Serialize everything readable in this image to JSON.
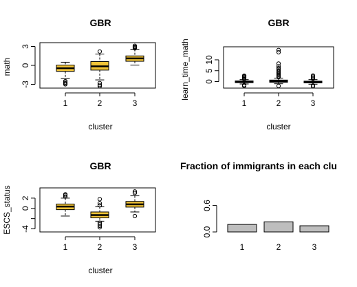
{
  "colors": {
    "box_fill": "#F2C438",
    "bar_fill": "#BEBEBE",
    "ink": "#000000"
  },
  "chart_data": [
    {
      "type": "box",
      "title": "GBR",
      "xlabel": "cluster",
      "ylabel": "math",
      "categories": [
        "1",
        "2",
        "3"
      ],
      "ylim": [
        -3.6,
        3.6
      ],
      "yticks": [
        -3,
        0,
        3
      ],
      "yticklabels": [
        "-3",
        "0",
        "3"
      ],
      "boxes": [
        {
          "name": "1",
          "low": -2.1,
          "q1": -0.95,
          "median": -0.45,
          "q3": 0.05,
          "high": 0.5,
          "outliers": [
            -2.5,
            -2.7,
            -2.85,
            -3.0
          ]
        },
        {
          "name": "2",
          "low": -2.3,
          "q1": -0.75,
          "median": -0.15,
          "q3": 0.6,
          "high": 1.8,
          "outliers": [
            2.2,
            -2.8,
            -3.1,
            -3.3
          ]
        },
        {
          "name": "3",
          "low": 0.05,
          "q1": 0.65,
          "median": 1.1,
          "q3": 1.5,
          "high": 2.55,
          "outliers": [
            2.7,
            2.85,
            2.95,
            3.1
          ]
        }
      ]
    },
    {
      "type": "box",
      "title": "GBR",
      "xlabel": "cluster",
      "ylabel": "learn_time_math",
      "categories": [
        "1",
        "2",
        "3"
      ],
      "ylim": [
        -3,
        16
      ],
      "yticks": [
        0,
        5,
        10
      ],
      "yticklabels": [
        "0",
        "5",
        "10"
      ],
      "boxes": [
        {
          "name": "1",
          "low": -1.1,
          "q1": -0.5,
          "median": -0.1,
          "q3": 0.3,
          "high": 0.9,
          "outliers": [
            1.2,
            1.6,
            2.0,
            2.4,
            2.7,
            -1.6,
            -2.0
          ]
        },
        {
          "name": "2",
          "low": -1.0,
          "q1": -0.3,
          "median": 0.2,
          "q3": 0.7,
          "high": 1.6,
          "outliers": [
            2.0,
            2.5,
            3.0,
            3.5,
            4.0,
            4.5,
            5.0,
            5.6,
            6.2,
            7.0,
            8.3,
            13.5,
            14.5,
            -2.0
          ]
        },
        {
          "name": "3",
          "low": -1.2,
          "q1": -0.6,
          "median": -0.2,
          "q3": 0.2,
          "high": 0.9,
          "outliers": [
            1.3,
            1.8,
            2.3,
            2.8,
            -1.8,
            -2.2
          ]
        }
      ]
    },
    {
      "type": "box",
      "title": "GBR",
      "xlabel": "cluster",
      "ylabel": "ESCS_status",
      "categories": [
        "1",
        "2",
        "3"
      ],
      "ylim": [
        -4.6,
        4.0
      ],
      "yticks": [
        -4,
        -2,
        0,
        2
      ],
      "yticklabels": [
        "-4",
        "",
        "0",
        "2"
      ],
      "boxes": [
        {
          "name": "1",
          "low": -1.5,
          "q1": -0.25,
          "median": 0.35,
          "q3": 0.85,
          "high": 2.0,
          "outliers": [
            2.3,
            2.55,
            2.75
          ]
        },
        {
          "name": "2",
          "low": -2.5,
          "q1": -1.85,
          "median": -1.3,
          "q3": -0.7,
          "high": 0.3,
          "outliers": [
            0.6,
            1.0,
            1.8,
            -2.8,
            -3.1,
            -3.4,
            -3.7
          ]
        },
        {
          "name": "3",
          "low": -0.7,
          "q1": 0.25,
          "median": 0.8,
          "q3": 1.35,
          "high": 2.45,
          "outliers": [
            3.0,
            3.3,
            -1.5
          ]
        }
      ]
    },
    {
      "type": "bar",
      "title": "Fraction of immigrants in each clu",
      "xlabel": "",
      "ylabel": "",
      "categories": [
        "1",
        "2",
        "3"
      ],
      "values": [
        0.17,
        0.23,
        0.14
      ],
      "ylim": [
        0,
        1.0
      ],
      "yticks": [
        0.0,
        0.6
      ],
      "yticklabels": [
        "0.0",
        "0.6"
      ]
    }
  ]
}
